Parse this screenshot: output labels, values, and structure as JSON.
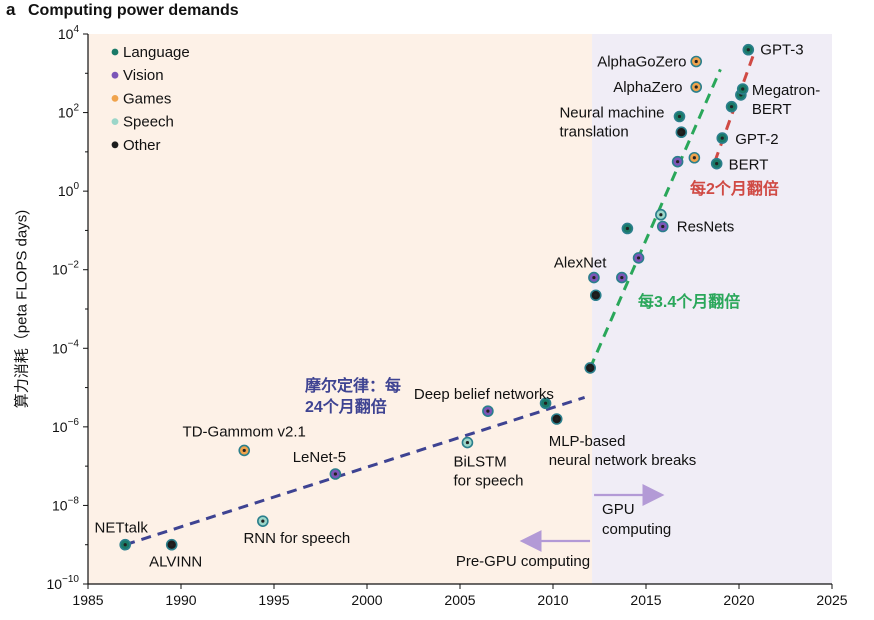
{
  "panel": {
    "letter": "a",
    "title": "Computing power demands"
  },
  "colors": {
    "language": "#1a7a68",
    "vision": "#7b55b8",
    "games": "#f0a34c",
    "speech": "#9bd6c9",
    "other": "#1c1c1c",
    "pre_gpu_bg": "#fdf1e7",
    "gpu_bg": "#f0edf6",
    "trend_moore": "#3e4392",
    "trend_gpu": "#2aa75a",
    "trend_recent": "#d04a44",
    "arrow": "#b39ad6",
    "outline": "#2b7f8c"
  },
  "chart_data": {
    "type": "scatter",
    "title": "Computing power demands",
    "xlabel": "",
    "ylabel": "算力消耗（peta FLOPS  days)",
    "xlim": [
      1985,
      2025
    ],
    "ylim_log10": [
      -10,
      4
    ],
    "y_scale": "log",
    "xticks": [
      "1985",
      "1990",
      "1995",
      "2000",
      "2005",
      "2010",
      "2015",
      "2020",
      "2025"
    ],
    "yticks": [
      {
        "exp": -10,
        "base": "10",
        "sup": "−10"
      },
      {
        "exp": -8,
        "base": "10",
        "sup": "−8"
      },
      {
        "exp": -6,
        "base": "10",
        "sup": "−6"
      },
      {
        "exp": -4,
        "base": "10",
        "sup": "−4"
      },
      {
        "exp": -2,
        "base": "10",
        "sup": "−2"
      },
      {
        "exp": 0,
        "base": "10",
        "sup": "0"
      },
      {
        "exp": 2,
        "base": "10",
        "sup": "2"
      },
      {
        "exp": 4,
        "base": "10",
        "sup": "4"
      }
    ],
    "legend": [
      {
        "label": "Language",
        "category": "language"
      },
      {
        "label": "Vision",
        "category": "vision"
      },
      {
        "label": "Games",
        "category": "games"
      },
      {
        "label": "Speech",
        "category": "speech"
      },
      {
        "label": "Other",
        "category": "other"
      }
    ],
    "regions": [
      {
        "name": "pre_gpu",
        "x_from": 1985,
        "x_to": 2012.1,
        "label": "Pre-GPU computing"
      },
      {
        "name": "gpu",
        "x_from": 2012.1,
        "x_to": 2025,
        "label": "GPU computing"
      }
    ],
    "points": [
      {
        "x": 1987.0,
        "log10y": -9.0,
        "category": "language",
        "label": "NETtalk"
      },
      {
        "x": 1989.5,
        "log10y": -9.0,
        "category": "other",
        "label": "ALVINN"
      },
      {
        "x": 1993.4,
        "log10y": -6.6,
        "category": "games",
        "label": "TD-Gammom v2.1"
      },
      {
        "x": 1994.4,
        "log10y": -8.4,
        "category": "speech",
        "label": "RNN for speech"
      },
      {
        "x": 1998.3,
        "log10y": -7.2,
        "category": "vision",
        "label": "LeNet-5"
      },
      {
        "x": 2005.4,
        "log10y": -6.4,
        "category": "speech",
        "label": "BiLSTM for speech"
      },
      {
        "x": 2006.5,
        "log10y": -5.6,
        "category": "vision",
        "label": "Deep belief networks"
      },
      {
        "x": 2009.6,
        "log10y": -5.4,
        "category": "language",
        "label": ""
      },
      {
        "x": 2010.2,
        "log10y": -5.8,
        "category": "other",
        "label": "MLP-based neural network breaks"
      },
      {
        "x": 2012.0,
        "log10y": -4.5,
        "category": "other",
        "label": ""
      },
      {
        "x": 2012.2,
        "log10y": -2.2,
        "category": "vision",
        "label": "AlexNet"
      },
      {
        "x": 2012.3,
        "log10y": -2.65,
        "category": "other",
        "label": ""
      },
      {
        "x": 2013.7,
        "log10y": -2.2,
        "category": "vision",
        "label": ""
      },
      {
        "x": 2014.0,
        "log10y": -0.95,
        "category": "language",
        "label": ""
      },
      {
        "x": 2014.6,
        "log10y": -1.7,
        "category": "vision",
        "label": ""
      },
      {
        "x": 2015.8,
        "log10y": -0.6,
        "category": "speech",
        "label": ""
      },
      {
        "x": 2015.9,
        "log10y": -0.9,
        "category": "vision",
        "label": "ResNets"
      },
      {
        "x": 2016.7,
        "log10y": 0.75,
        "category": "vision",
        "label": ""
      },
      {
        "x": 2016.8,
        "log10y": 1.9,
        "category": "language",
        "label": "Neural machine translation"
      },
      {
        "x": 2016.9,
        "log10y": 1.5,
        "category": "other",
        "label": ""
      },
      {
        "x": 2017.6,
        "log10y": 0.85,
        "category": "games",
        "label": ""
      },
      {
        "x": 2017.7,
        "log10y": 2.65,
        "category": "games",
        "label": "AlphaZero"
      },
      {
        "x": 2017.7,
        "log10y": 3.3,
        "category": "games",
        "label": "AlphaGoZero"
      },
      {
        "x": 2018.8,
        "log10y": 0.7,
        "category": "language",
        "label": "BERT"
      },
      {
        "x": 2019.1,
        "log10y": 1.35,
        "category": "language",
        "label": "GPT-2"
      },
      {
        "x": 2019.6,
        "log10y": 2.15,
        "category": "language",
        "label": ""
      },
      {
        "x": 2020.1,
        "log10y": 2.45,
        "category": "language",
        "label": "Megatron-BERT"
      },
      {
        "x": 2020.2,
        "log10y": 2.6,
        "category": "language",
        "label": ""
      },
      {
        "x": 2020.5,
        "log10y": 3.6,
        "category": "language",
        "label": "GPT-3"
      }
    ],
    "trend_lines": [
      {
        "name": "moore",
        "from": [
          1987,
          -9.0
        ],
        "to": [
          2011.7,
          -5.25
        ],
        "label": "摩尔定律：每\n24个月翻倍"
      },
      {
        "name": "gpu",
        "from": [
          2012.0,
          -4.5
        ],
        "to": [
          2019.0,
          3.1
        ],
        "label": "每3.4个月翻倍"
      },
      {
        "name": "recent",
        "from": [
          2018.7,
          0.75
        ],
        "to": [
          2020.8,
          3.5
        ],
        "label": "每2个月翻倍"
      }
    ]
  }
}
